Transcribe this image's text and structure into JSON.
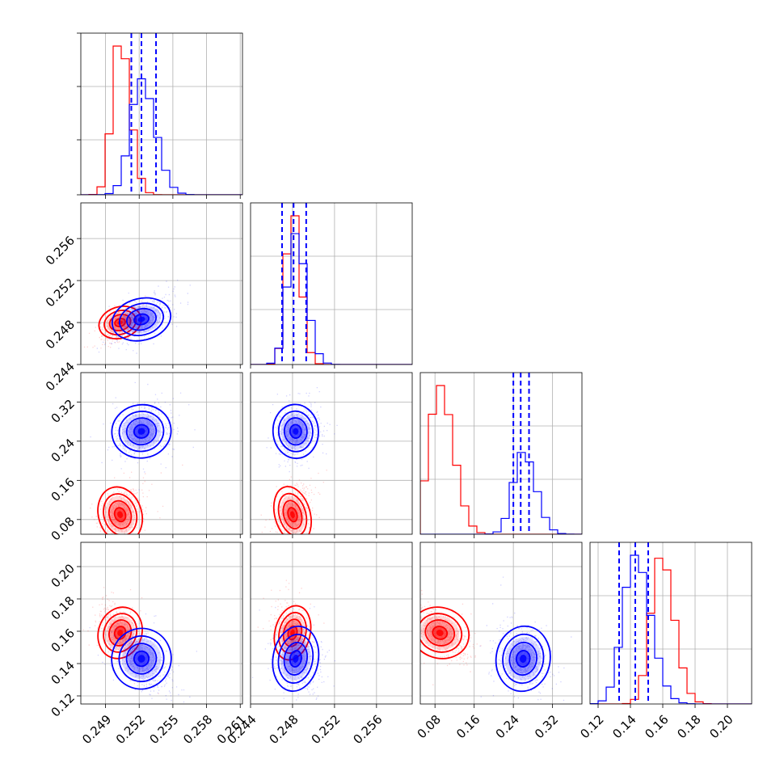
{
  "colors": {
    "series_a": "#ff0000",
    "series_b": "#0000ff",
    "frame": "#000000",
    "grid": "#b0b0b0"
  },
  "chart_data": {
    "type": "corner",
    "n_params": 4,
    "grid": true,
    "params": [
      {
        "range": [
          0.2468,
          0.2612
        ],
        "ticks": [
          0.249,
          0.252,
          0.255,
          0.258,
          0.261
        ],
        "tick_labels": [
          "0.249",
          "0.252",
          "0.255",
          "0.258",
          "0.261"
        ]
      },
      {
        "range": [
          0.244,
          0.2594
        ],
        "ticks": [
          0.244,
          0.248,
          0.252,
          0.256
        ],
        "tick_labels": [
          "0.244",
          "0.248",
          "0.252",
          "0.256"
        ]
      },
      {
        "range": [
          0.05,
          0.38
        ],
        "ticks": [
          0.08,
          0.16,
          0.24,
          0.32
        ],
        "tick_labels": [
          "0.08",
          "0.16",
          "0.24",
          "0.32"
        ]
      },
      {
        "range": [
          0.115,
          0.215
        ],
        "ticks": [
          0.12,
          0.14,
          0.16,
          0.18,
          0.2
        ],
        "tick_labels": [
          "0.12",
          "0.14",
          "0.16",
          "0.18",
          "0.20"
        ]
      }
    ],
    "series": [
      {
        "color": "#ff0000",
        "centers": [
          0.2503,
          0.248,
          0.09,
          0.159
        ],
        "sigmas": [
          0.0008,
          0.0007,
          0.025,
          0.0072
        ],
        "hist_ymax": [
          1.0,
          1.0,
          1.0,
          0.98
        ],
        "correlations": [
          [
            0,
            1,
            0.65
          ],
          [
            0,
            2,
            0.4
          ],
          [
            1,
            2,
            0.3
          ],
          [
            0,
            3,
            -0.5
          ],
          [
            1,
            3,
            -0.25
          ],
          [
            2,
            3,
            -0.6
          ]
        ]
      },
      {
        "color": "#0000ff",
        "centers": [
          0.2522,
          0.2483,
          0.26,
          0.143
        ],
        "sigmas": [
          0.0011,
          0.0009,
          0.023,
          0.0085
        ],
        "hist_ymax": [
          0.78,
          0.88,
          0.55,
          1.0
        ],
        "quantiles": [
          [
            0.2513,
            0.2522,
            0.2535
          ],
          [
            0.247,
            0.2481,
            0.2493
          ],
          [
            0.24,
            0.255,
            0.272
          ],
          [
            0.133,
            0.143,
            0.151
          ]
        ],
        "correlations": [
          [
            0,
            1,
            0.55
          ],
          [
            0,
            2,
            0.25
          ],
          [
            1,
            2,
            0.1
          ],
          [
            0,
            3,
            -0.55
          ],
          [
            1,
            3,
            -0.2
          ],
          [
            2,
            3,
            -0.2
          ]
        ]
      }
    ]
  }
}
